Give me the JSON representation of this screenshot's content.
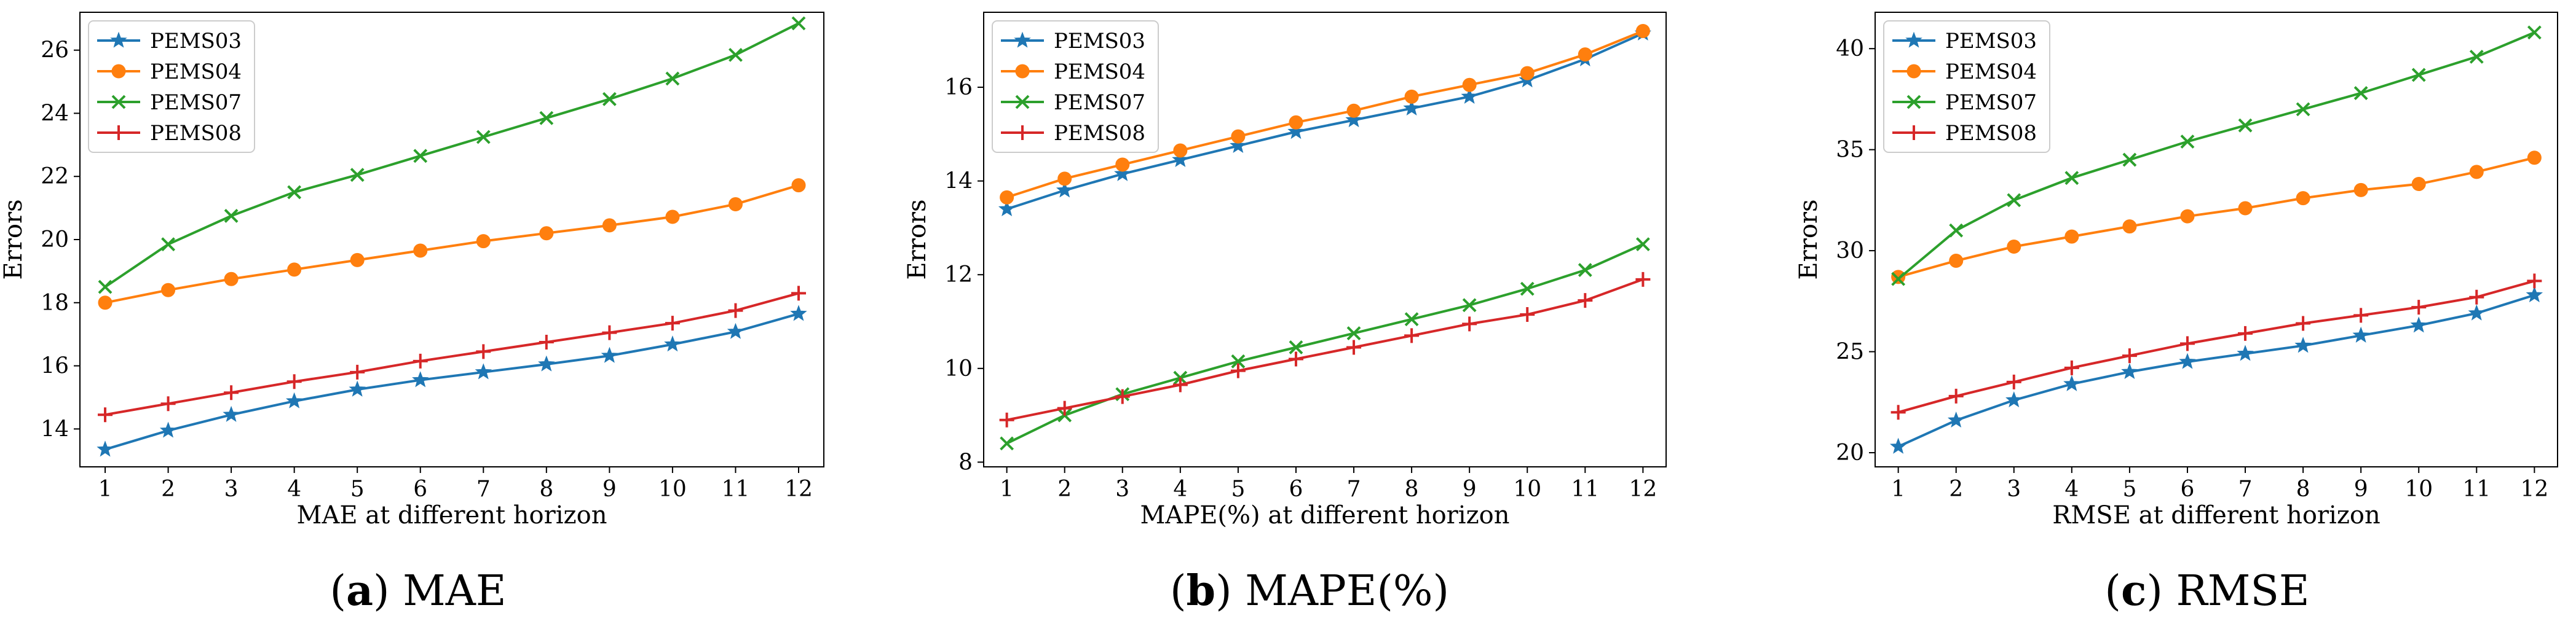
{
  "chart_data": [
    {
      "type": "line",
      "panel_letter": "a",
      "panel_caption": "MAE",
      "xlabel": "MAE at different horizon",
      "ylabel": "Errors",
      "xlim": [
        0.6,
        12.4
      ],
      "ylim": [
        12.8,
        27.2
      ],
      "categories": [
        1,
        2,
        3,
        4,
        5,
        6,
        7,
        8,
        9,
        10,
        11,
        12
      ],
      "yticks": [
        14,
        16,
        18,
        20,
        22,
        24,
        26
      ],
      "legend_position": "top-left",
      "series": [
        {
          "name": "PEMS03",
          "marker": "star",
          "values": [
            13.35,
            13.95,
            14.45,
            14.88,
            15.25,
            15.55,
            15.8,
            16.05,
            16.32,
            16.68,
            17.08,
            17.65
          ]
        },
        {
          "name": "PEMS04",
          "marker": "circle",
          "values": [
            18.0,
            18.4,
            18.75,
            19.05,
            19.35,
            19.65,
            19.95,
            20.2,
            20.45,
            20.72,
            21.12,
            21.72
          ]
        },
        {
          "name": "PEMS07",
          "marker": "x",
          "values": [
            18.5,
            19.85,
            20.75,
            21.5,
            22.05,
            22.65,
            23.25,
            23.85,
            24.45,
            25.1,
            25.85,
            26.85
          ]
        },
        {
          "name": "PEMS08",
          "marker": "plus",
          "values": [
            14.45,
            14.8,
            15.15,
            15.5,
            15.8,
            16.15,
            16.45,
            16.75,
            17.05,
            17.35,
            17.75,
            18.3
          ]
        }
      ]
    },
    {
      "type": "line",
      "panel_letter": "b",
      "panel_caption": "MAPE(%)",
      "xlabel": "MAPE(%) at different horizon",
      "ylabel": "Errors",
      "xlim": [
        0.6,
        12.4
      ],
      "ylim": [
        7.9,
        17.6
      ],
      "categories": [
        1,
        2,
        3,
        4,
        5,
        6,
        7,
        8,
        9,
        10,
        11,
        12
      ],
      "yticks": [
        8,
        10,
        12,
        14,
        16
      ],
      "legend_position": "top-left",
      "series": [
        {
          "name": "PEMS03",
          "marker": "star",
          "values": [
            13.4,
            13.8,
            14.15,
            14.45,
            14.75,
            15.05,
            15.3,
            15.55,
            15.8,
            16.15,
            16.6,
            17.15
          ]
        },
        {
          "name": "PEMS04",
          "marker": "circle",
          "values": [
            13.65,
            14.05,
            14.35,
            14.65,
            14.95,
            15.25,
            15.5,
            15.8,
            16.05,
            16.3,
            16.7,
            17.2
          ]
        },
        {
          "name": "PEMS07",
          "marker": "x",
          "values": [
            8.4,
            9.0,
            9.45,
            9.8,
            10.15,
            10.45,
            10.75,
            11.05,
            11.35,
            11.7,
            12.1,
            12.65
          ]
        },
        {
          "name": "PEMS08",
          "marker": "plus",
          "values": [
            8.9,
            9.15,
            9.4,
            9.65,
            9.95,
            10.2,
            10.45,
            10.7,
            10.95,
            11.15,
            11.45,
            11.9
          ]
        }
      ]
    },
    {
      "type": "line",
      "panel_letter": "c",
      "panel_caption": "RMSE",
      "xlabel": "RMSE at different horizon",
      "ylabel": "Errors",
      "xlim": [
        0.6,
        12.4
      ],
      "ylim": [
        19.3,
        41.8
      ],
      "categories": [
        1,
        2,
        3,
        4,
        5,
        6,
        7,
        8,
        9,
        10,
        11,
        12
      ],
      "yticks": [
        20,
        25,
        30,
        35,
        40
      ],
      "legend_position": "top-left",
      "series": [
        {
          "name": "PEMS03",
          "marker": "star",
          "values": [
            20.3,
            21.6,
            22.6,
            23.4,
            24.0,
            24.5,
            24.9,
            25.3,
            25.8,
            26.3,
            26.9,
            27.8
          ]
        },
        {
          "name": "PEMS04",
          "marker": "circle",
          "values": [
            28.7,
            29.5,
            30.2,
            30.7,
            31.2,
            31.7,
            32.1,
            32.6,
            33.0,
            33.3,
            33.9,
            34.6
          ]
        },
        {
          "name": "PEMS07",
          "marker": "x",
          "values": [
            28.6,
            31.0,
            32.5,
            33.6,
            34.5,
            35.4,
            36.2,
            37.0,
            37.8,
            38.7,
            39.6,
            40.8
          ]
        },
        {
          "name": "PEMS08",
          "marker": "plus",
          "values": [
            22.0,
            22.8,
            23.5,
            24.2,
            24.8,
            25.4,
            25.9,
            26.4,
            26.8,
            27.2,
            27.7,
            28.5
          ]
        }
      ]
    }
  ],
  "colors": {
    "PEMS03": "#1f77b4",
    "PEMS04": "#ff7f0e",
    "PEMS07": "#2ca02c",
    "PEMS08": "#d62728"
  }
}
